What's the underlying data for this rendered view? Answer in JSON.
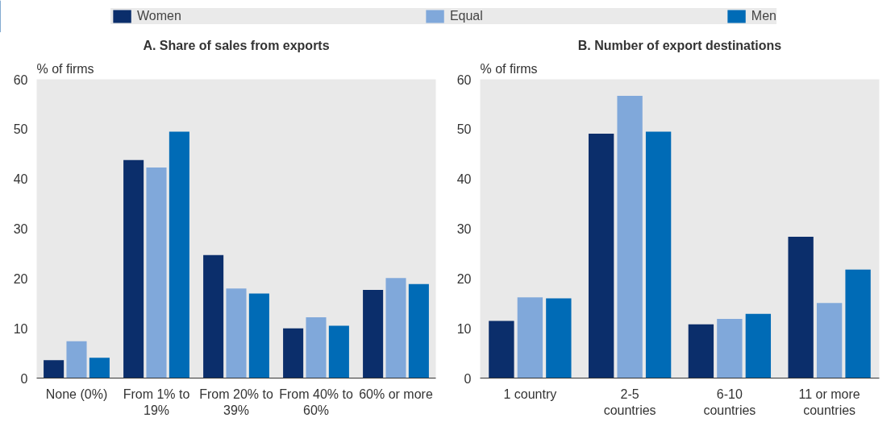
{
  "chart_data": [
    {
      "type": "bar",
      "title": "A. Share of sales from exports",
      "ylabel": "% of firms",
      "categories": [
        "None (0%)",
        "From 1% to 19%",
        "From 20% to 39%",
        "From 40% to 60%",
        "60% or more"
      ],
      "series": [
        {
          "name": "Women",
          "color": "#0b2e6b",
          "values": [
            3.6,
            43.8,
            24.7,
            10.0,
            17.7
          ]
        },
        {
          "name": "Equal",
          "color": "#80a8da",
          "values": [
            7.4,
            42.3,
            18.0,
            12.2,
            20.1
          ]
        },
        {
          "name": "Men",
          "color": "#006bb6",
          "values": [
            4.1,
            49.5,
            17.0,
            10.5,
            18.9
          ]
        }
      ],
      "ylim": [
        0,
        60
      ],
      "yticks": [
        0,
        10,
        20,
        30,
        40,
        50,
        60
      ],
      "grid": false,
      "legend": "top"
    },
    {
      "type": "bar",
      "title": "B. Number of export destinations",
      "ylabel": "% of firms",
      "categories": [
        "1 country",
        "2-5 countries",
        "6-10 countries",
        "11 or more countries"
      ],
      "series": [
        {
          "color": "#0b2e6b",
          "values": [
            11.5,
            49.1,
            10.8,
            28.4
          ]
        },
        {
          "color": "#80a8da",
          "values": [
            16.2,
            56.7,
            11.9,
            15.1
          ]
        },
        {
          "color": "#006bb6",
          "values": [
            16.0,
            49.5,
            12.9,
            21.8
          ]
        }
      ],
      "ylim": [
        0,
        60
      ],
      "yticks": [
        0,
        10,
        20,
        30,
        40,
        50,
        60
      ],
      "grid": false
    }
  ]
}
